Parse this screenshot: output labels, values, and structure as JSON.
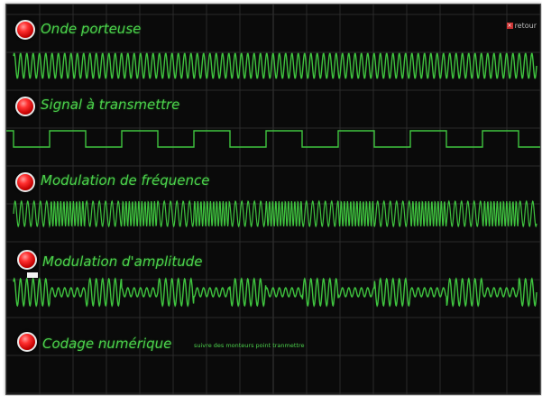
{
  "retour_label": "retour",
  "sections": [
    {
      "id": "carrier",
      "title": "Onde porteuse"
    },
    {
      "id": "signal",
      "title": "Signal à transmettre"
    },
    {
      "id": "fm",
      "title": "Modulation de fréquence"
    },
    {
      "id": "am",
      "title": "Modulation d'amplitude"
    },
    {
      "id": "digital",
      "title": "Codage numérique",
      "note": "suivre des monteurs point tranmettre"
    }
  ],
  "colors": {
    "trace": "#3fc43f",
    "label": "#4cd14c",
    "background": "#0a0a0a",
    "grid": "#2b2b2b"
  }
}
